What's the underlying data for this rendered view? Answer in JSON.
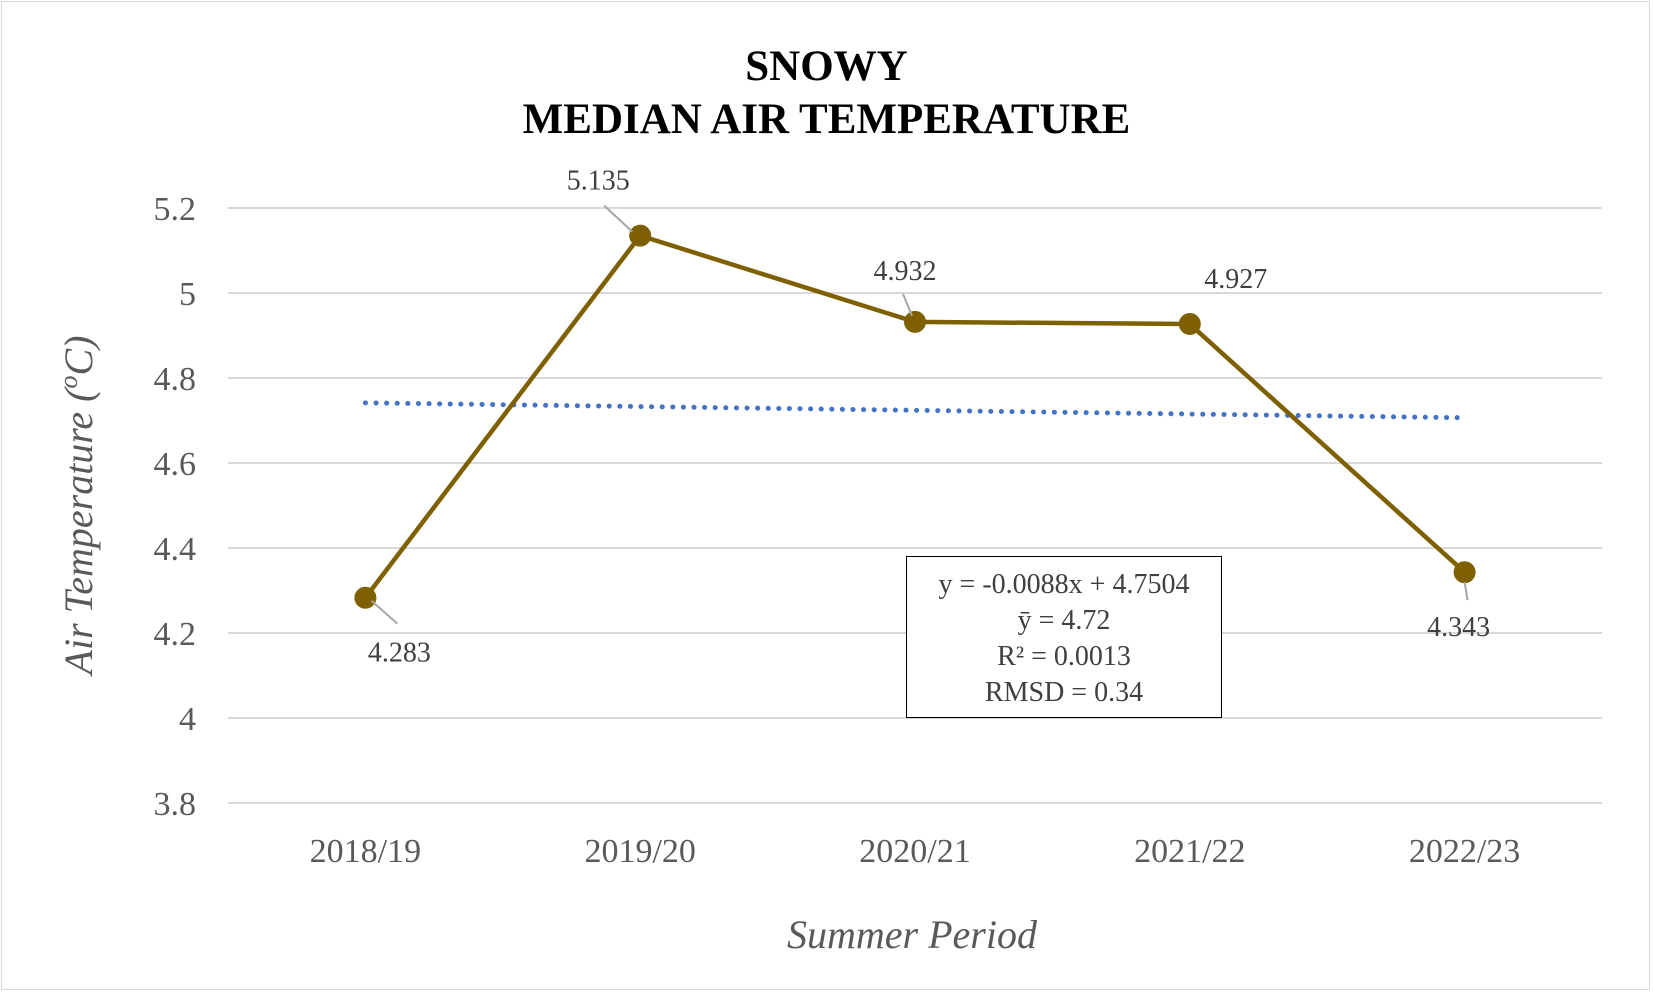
{
  "chart_data": {
    "type": "line",
    "title_line1": "SNOWY",
    "title_line2": "MEDIAN AIR TEMPERATURE",
    "xlabel": "Summer Period",
    "ylabel": "Air Temperature (°C)",
    "ylabel_parts": {
      "pre": "Air Temperature (",
      "sup": "o",
      "post": "C)"
    },
    "categories": [
      "2018/19",
      "2019/20",
      "2020/21",
      "2021/22",
      "2022/23"
    ],
    "series": [
      {
        "values": [
          4.283,
          5.135,
          4.932,
          4.927,
          4.343
        ],
        "color": "#7f6000",
        "data_labels": [
          "4.283",
          "5.135",
          "4.932",
          "4.927",
          "4.343"
        ]
      }
    ],
    "trendline": {
      "type": "linear",
      "style": "dotted",
      "color": "#4472c4",
      "start": 4.7416,
      "end": 4.7064
    },
    "ylim": [
      3.8,
      5.2
    ],
    "yticks": [
      3.8,
      4,
      4.2,
      4.4,
      4.6,
      4.8,
      5,
      5.2
    ],
    "ytick_labels": [
      "3.8",
      "4",
      "4.2",
      "4.4",
      "4.6",
      "4.8",
      "5",
      "5.2"
    ],
    "grid": true,
    "stats": {
      "equation": "y = -0.0088x + 4.7504",
      "mean": "ȳ = 4.72",
      "r2": "R² = 0.0013",
      "rmsd": "RMSD = 0.34"
    }
  }
}
